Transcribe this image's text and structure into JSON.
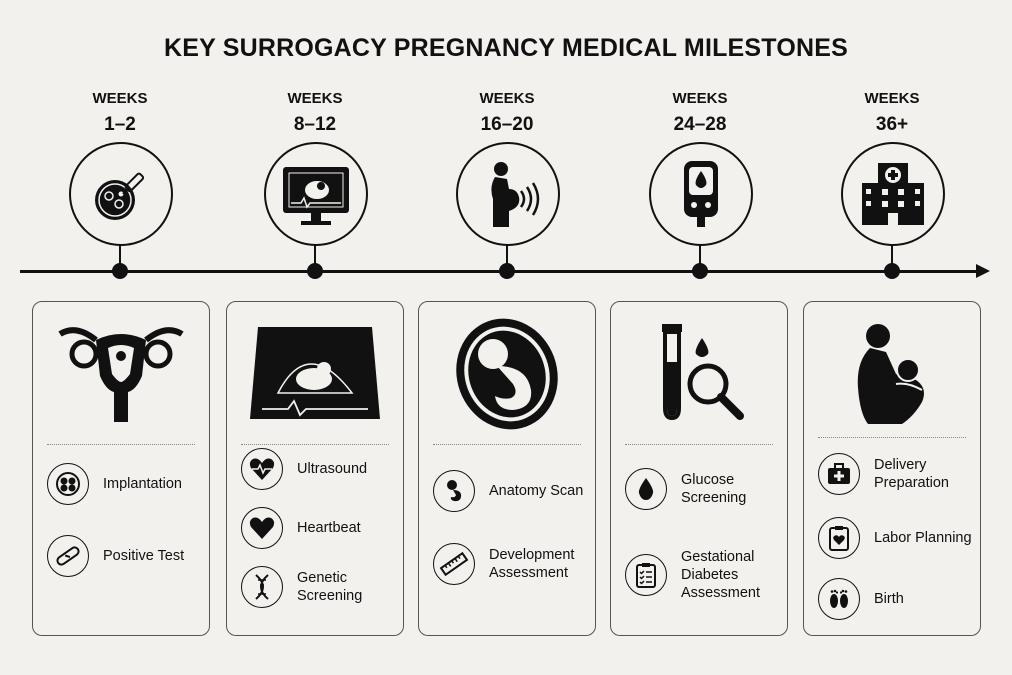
{
  "title": "KEY SURROGACY PREGNANCY MEDICAL MILESTONES",
  "stages": [
    {
      "weeks_label": "WEEKS",
      "weeks_range": "1–2",
      "stage_icon": "petri-dish-pipette-icon",
      "illustration": "uterus-icon",
      "items": [
        {
          "icon": "embryo-cells-icon",
          "label": "Implantation"
        },
        {
          "icon": "pregnancy-test-icon",
          "label": "Positive Test"
        }
      ]
    },
    {
      "weeks_label": "WEEKS",
      "weeks_range": "8–12",
      "stage_icon": "ultrasound-monitor-icon",
      "illustration": "ultrasound-scan-icon",
      "items": [
        {
          "icon": "heart-pulse-icon",
          "label": "Ultrasound"
        },
        {
          "icon": "heart-icon",
          "label": "Heartbeat"
        },
        {
          "icon": "dna-icon",
          "label": "Genetic Screening"
        }
      ]
    },
    {
      "weeks_label": "WEEKS",
      "weeks_range": "16–20",
      "stage_icon": "pregnant-woman-icon",
      "illustration": "fetus-in-womb-icon",
      "items": [
        {
          "icon": "fetus-icon",
          "label": "Anatomy Scan"
        },
        {
          "icon": "ruler-icon",
          "label": "Development Assessment"
        }
      ]
    },
    {
      "weeks_label": "WEEKS",
      "weeks_range": "24–28",
      "stage_icon": "glucose-meter-icon",
      "illustration": "test-tube-magnifier-icon",
      "items": [
        {
          "icon": "blood-drop-icon",
          "label": "Glucose Screening"
        },
        {
          "icon": "clipboard-checklist-icon",
          "label": "Gestational Diabetes Assessment"
        }
      ]
    },
    {
      "weeks_label": "WEEKS",
      "weeks_range": "36+",
      "stage_icon": "hospital-icon",
      "illustration": "mother-and-baby-icon",
      "items": [
        {
          "icon": "medical-bag-icon",
          "label": "Delivery Preparation"
        },
        {
          "icon": "clipboard-heart-icon",
          "label": "Labor Planning"
        },
        {
          "icon": "baby-footprints-icon",
          "label": "Birth"
        }
      ]
    }
  ],
  "colors": {
    "background": "#f3f1ee",
    "ink": "#111111",
    "card_border": "#555555"
  }
}
